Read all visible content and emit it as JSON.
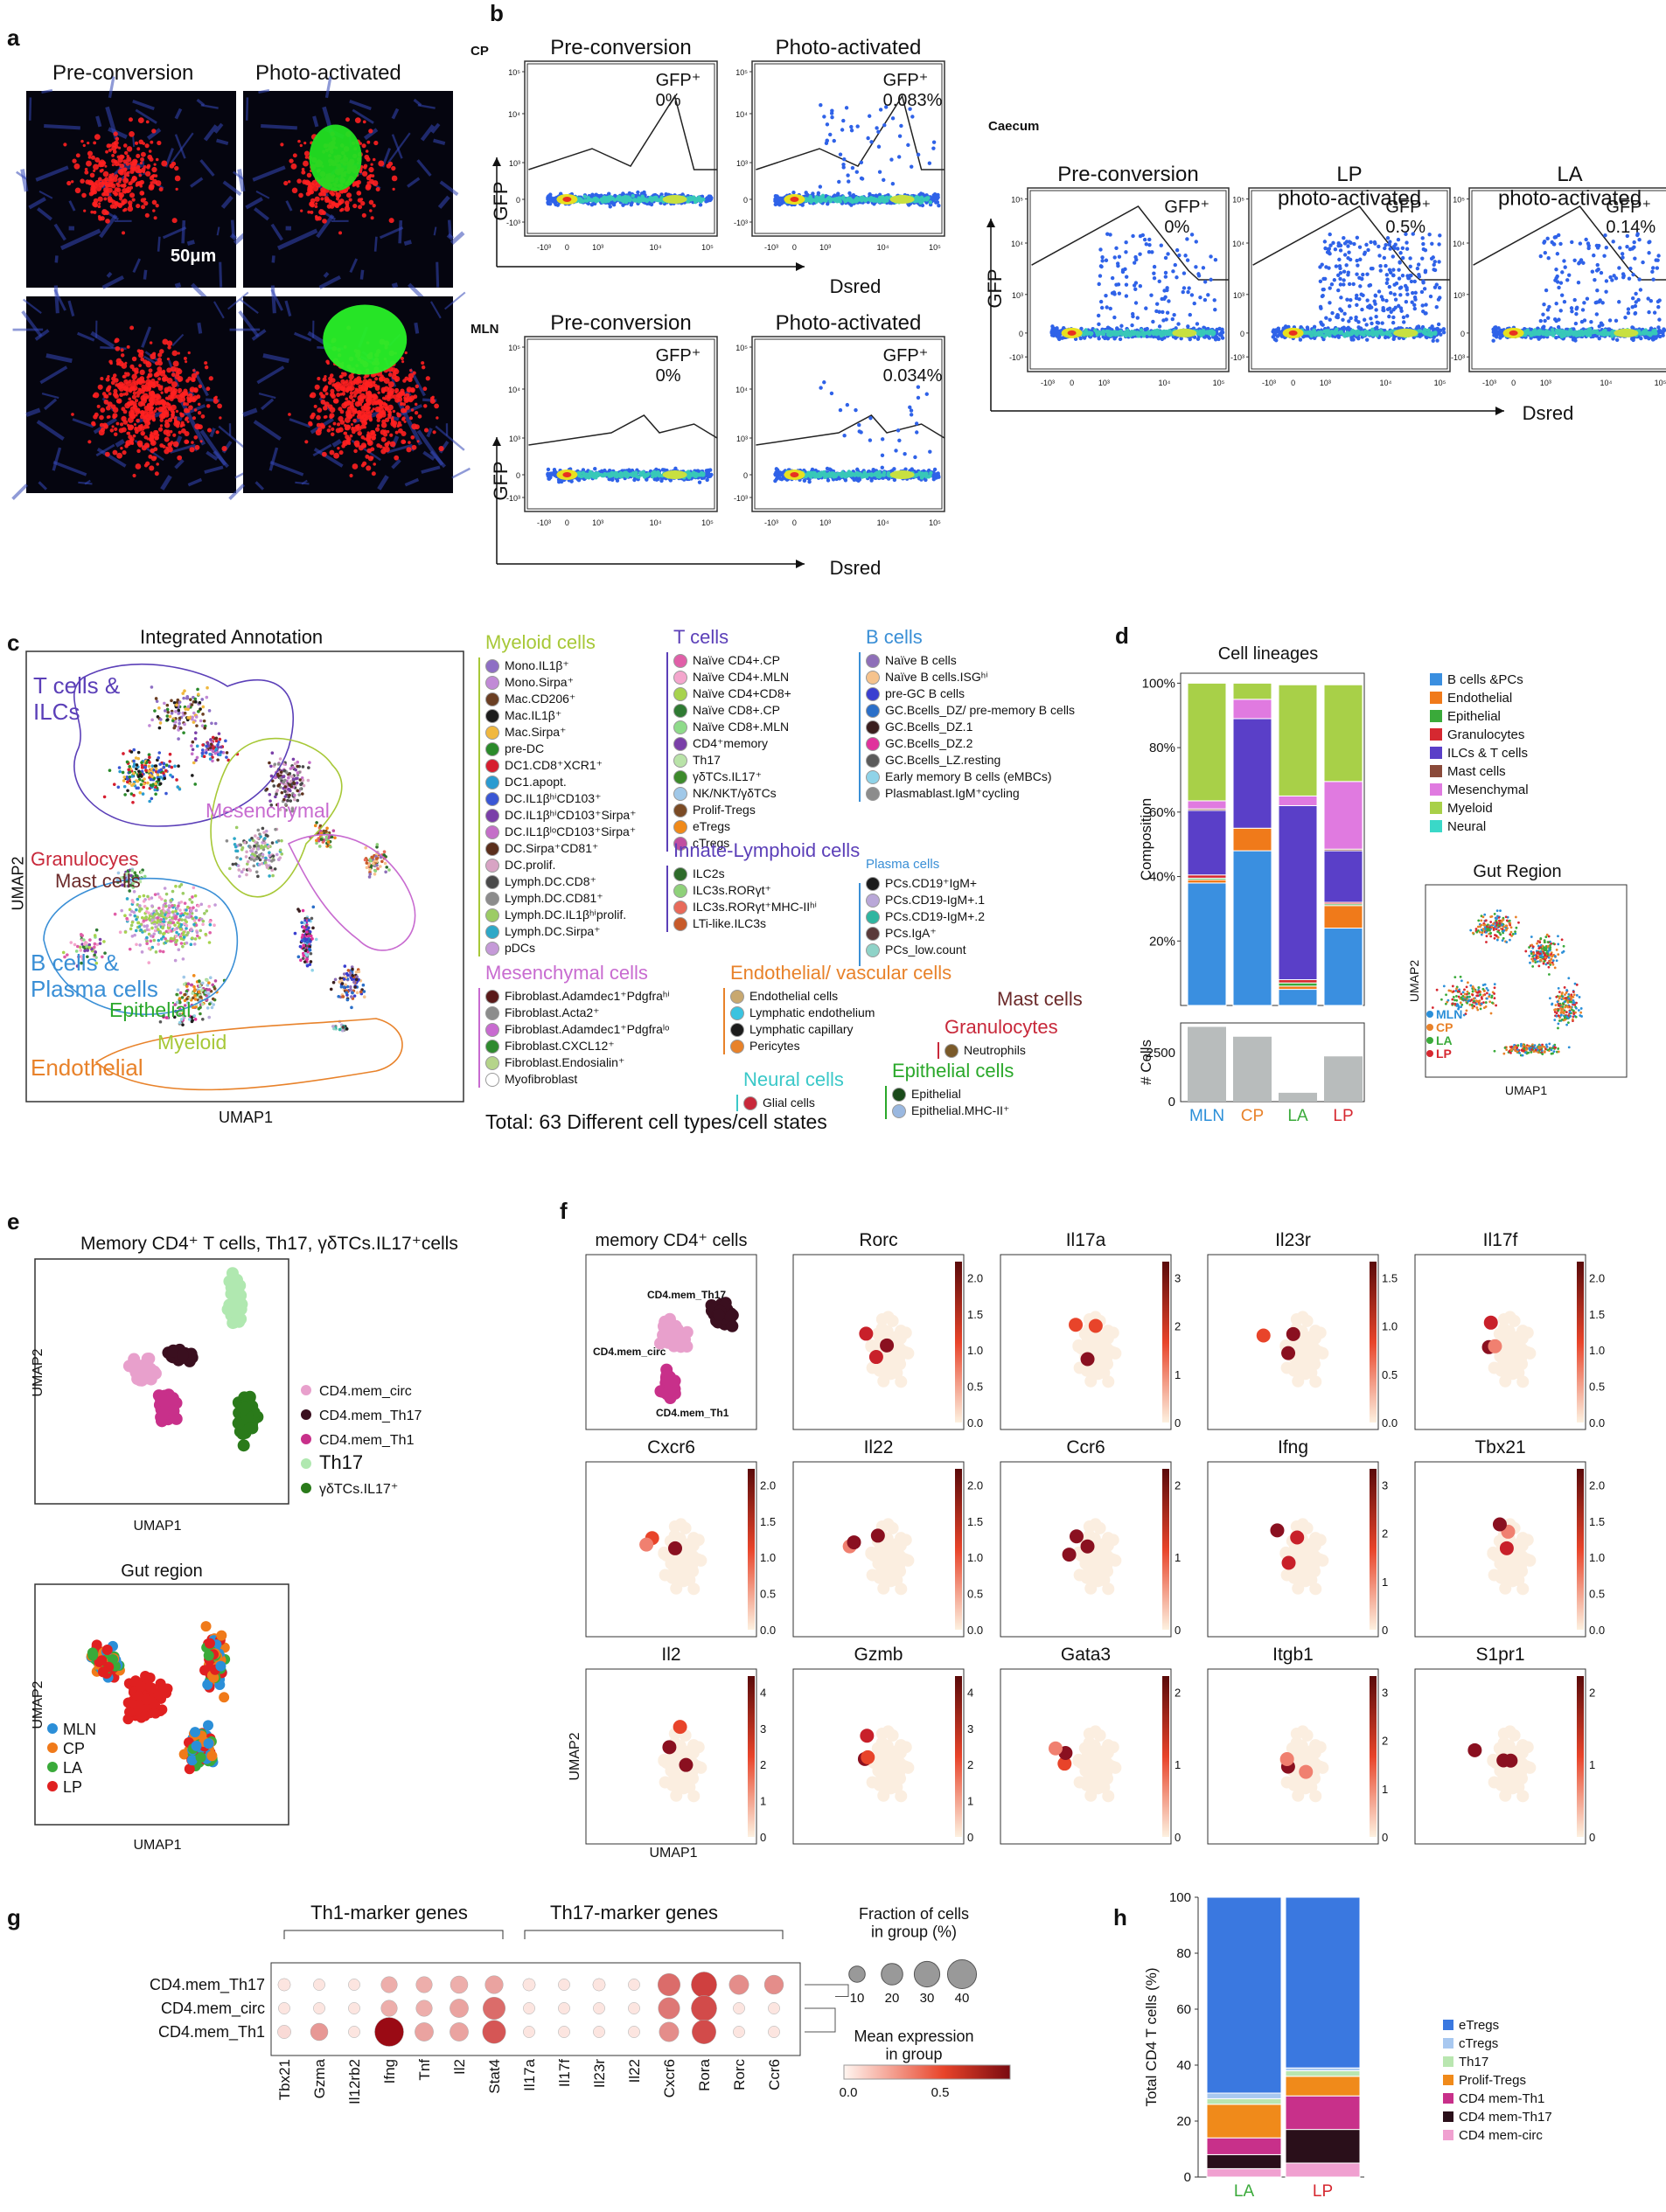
{
  "panel_a": {
    "letter": "a",
    "col_titles": [
      "Pre-conversion",
      "Photo-activated"
    ],
    "scale_label": "50μm"
  },
  "panel_b": {
    "letter": "b",
    "cp_label": "CP",
    "mln_label": "MLN",
    "caecum_label": "Caecum",
    "titles_cp": [
      "Pre-conversion",
      "Photo-activated"
    ],
    "titles_mln": [
      "Pre-conversion",
      "Photo-activated"
    ],
    "titles_caecum": [
      "Pre-conversion",
      "LP\nphoto-activated",
      "LA\nphoto-activated"
    ],
    "gfp_cp": [
      "GFP⁺\n0%",
      "GFP⁺\n0.083%"
    ],
    "gfp_mln": [
      "GFP⁺\n0%",
      "GFP⁺\n0.034%"
    ],
    "gfp_caecum": [
      "GFP⁺\n0%",
      "GFP⁺\n0.5%",
      "GFP⁺\n0.14%"
    ],
    "ylabel": "GFP",
    "xlabel": "Dsred",
    "yticks": [
      "10⁵",
      "10⁴",
      "10³",
      "0",
      "-10³"
    ],
    "xticks": [
      "-10³",
      "0",
      "10³",
      "10⁴",
      "10⁵"
    ]
  },
  "panel_c": {
    "letter": "c",
    "title": "Integrated Annotation",
    "xlabel": "UMAP1",
    "ylabel": "UMAP2",
    "region_labels": {
      "t": "T cells &\nILCs",
      "mes": "Mesenchymal",
      "gran": "Granulocyes",
      "mast": "Mast cells",
      "b": "B cells &\nPlasma cells",
      "epi": "Epithelial",
      "mye": "Myeloid",
      "endo": "Endothelial"
    },
    "total": "Total: 63 Different cell types/cell states",
    "groups": [
      {
        "name": "Myeloid cells",
        "color": "#a7c837",
        "items": [
          [
            "Mono.IL1β⁺",
            "#8e6fc4"
          ],
          [
            "Mono.Sirpa⁺",
            "#c18ad6"
          ],
          [
            "Mac.CD206⁺",
            "#6b3f23"
          ],
          [
            "Mac.IL1β⁺",
            "#1c1c1c"
          ],
          [
            "Mac.Sirpa⁺",
            "#f0b83f"
          ],
          [
            "pre-DC",
            "#2a8a2a"
          ],
          [
            "DC1.CD8⁺XCR1⁺",
            "#d61e2f"
          ],
          [
            "DC1.apopt.",
            "#2b9bd1"
          ],
          [
            "DC.IL1βʰⁱCD103⁺",
            "#3a57d4"
          ],
          [
            "DC.IL1βʰⁱCD103⁺Sirpa⁺",
            "#7a3fa8"
          ],
          [
            "DC.IL1βˡᵒCD103⁺Sirpa⁺",
            "#c46fc8"
          ],
          [
            "DC.Sirpa⁺CD81⁺",
            "#5b2f1c"
          ],
          [
            "DC.prolif.",
            "#d8a4c4"
          ],
          [
            "Lymph.DC.CD8⁺",
            "#4a4a4a"
          ],
          [
            "Lymph.DC.CD81⁺",
            "#8c8c8c"
          ],
          [
            "Lymph.DC.IL1βʰⁱprolif.",
            "#9ccc65"
          ],
          [
            "Lymph.DC.Sirpa⁺",
            "#2ea8c7"
          ],
          [
            "pDCs",
            "#c59ad8"
          ]
        ]
      },
      {
        "name": "T cells",
        "color": "#5b3fb8",
        "items": [
          [
            "Naïve CD4+.CP",
            "#e05fa8"
          ],
          [
            "Naïve CD4+.MLN",
            "#f4a6cd"
          ],
          [
            "Naïve CD4+CD8+",
            "#a7d34e"
          ],
          [
            "Naïve CD8+.CP",
            "#2f7a33"
          ],
          [
            "Naïve CD8+.MLN",
            "#8fdb8a"
          ],
          [
            "CD4⁺memory",
            "#7a3fa8"
          ],
          [
            "Th17",
            "#b9e3a8"
          ],
          [
            "γδTCs.IL17⁺",
            "#3d8a2b"
          ],
          [
            "NK/NKT/γδTCs",
            "#a0c8e8"
          ],
          [
            "Prolif-Tregs",
            "#7b4b25"
          ],
          [
            "eTregs",
            "#f08a1a"
          ],
          [
            "cTregs",
            "#c04ea0"
          ]
        ]
      },
      {
        "name": "Innate-Lymphoid cells",
        "color": "#5b3fb8",
        "items": [
          [
            "ILC2s",
            "#2e6b2a"
          ],
          [
            "ILC3s.RORγt⁺",
            "#8fd17a"
          ],
          [
            "ILC3s.RORγt⁺MHC-IIʰⁱ",
            "#e86a5a"
          ],
          [
            "LTi-like.ILC3s",
            "#c75a2a"
          ]
        ]
      },
      {
        "name": "B cells",
        "color": "#3a8fd6",
        "items": [
          [
            "Naïve B cells",
            "#8e6fb8"
          ],
          [
            "Naïve B cells.ISGʰⁱ",
            "#f6c38d"
          ],
          [
            "pre-GC B cells",
            "#3a3fd0"
          ],
          [
            "GC.Bcells_DZ/\npre-memory B cells",
            "#2b6fc8"
          ],
          [
            "GC.Bcells_DZ.1",
            "#3a1f1f"
          ],
          [
            "GC.Bcells_DZ.2",
            "#e0329c"
          ],
          [
            "GC.Bcells_LZ.resting",
            "#5a5a5a"
          ],
          [
            "Early memory B cells\n(eMBCs)",
            "#8fd3e8"
          ],
          [
            "Plasmablast.IgM⁺cycling",
            "#8c8c8c"
          ]
        ]
      },
      {
        "name": "Plasma cells",
        "color": "#3a8fd6",
        "items": [
          [
            "PCs.CD19⁺IgM+",
            "#1c1c1c"
          ],
          [
            "PCs.CD19-IgM+.1",
            "#b9a8d8"
          ],
          [
            "PCs.CD19-IgM+.2",
            "#2fb5a0"
          ],
          [
            "PCs.IgA⁺",
            "#5a3a3a"
          ],
          [
            "PCs_low.count",
            "#8fd3c8"
          ]
        ]
      },
      {
        "name": "Mesenchymal cells",
        "color": "#c86bd0",
        "items": [
          [
            "Fibroblast.Adamdec1⁺Pdgfraʰⁱ",
            "#5a1a1a"
          ],
          [
            "Fibroblast.Acta2⁺",
            "#8c8c8c"
          ],
          [
            "Fibroblast.Adamdec1⁺Pdgfraˡᵒ",
            "#c86bd0"
          ],
          [
            "Fibroblast.CXCL12⁺",
            "#2f8a2f"
          ],
          [
            "Fibroblast.Endosialin⁺",
            "#b5d48a"
          ],
          [
            "Myofibroblast",
            "#ffffff"
          ]
        ]
      },
      {
        "name": "Endothelial/ vascular cells",
        "color": "#e8822a",
        "items": [
          [
            "Endothelial cells",
            "#c8a870"
          ],
          [
            "Lymphatic endothelium",
            "#3ac3e0"
          ],
          [
            "Lymphatic capillary",
            "#1c1c1c"
          ],
          [
            "Pericytes",
            "#e8822a"
          ]
        ]
      },
      {
        "name": "Mast cells",
        "color": "#6b2a2a",
        "items": []
      },
      {
        "name": "Granulocytes",
        "color": "#c8283a",
        "items": [
          [
            "Neutrophils",
            "#7a5a2a"
          ]
        ]
      },
      {
        "name": "Neural cells",
        "color": "#3ac8c8",
        "items": [
          [
            "Glial cells",
            "#c8283a"
          ]
        ]
      },
      {
        "name": "Epithelial cells",
        "color": "#2aa82a",
        "items": [
          [
            "Epithelial",
            "#1a4a1a"
          ],
          [
            "Epithelial.MHC-II⁺",
            "#9ab8e0"
          ]
        ]
      }
    ]
  },
  "panel_d": {
    "letter": "d",
    "chart_data": {
      "type": "bar",
      "title": "Cell lineages",
      "ylabel_top": "Composition",
      "ylabel_bottom": "# Cells",
      "categories": [
        "MLN",
        "CP",
        "LA",
        "LP"
      ],
      "category_colors": [
        "#2b8fd8",
        "#e8822a",
        "#3aaa3a",
        "#d62830"
      ],
      "yticks_top": [
        "20%",
        "40%",
        "60%",
        "80%",
        "100%"
      ],
      "series": [
        {
          "name": "B cells &PCs",
          "color": "#3a8fe0",
          "values": [
            0.38,
            0.48,
            0.05,
            0.24
          ]
        },
        {
          "name": "Endothelial",
          "color": "#f07a1a",
          "values": [
            0.01,
            0.07,
            0.01,
            0.07
          ]
        },
        {
          "name": "Epithelial",
          "color": "#3aaa3a",
          "values": [
            0.005,
            0.0,
            0.01,
            0.005
          ]
        },
        {
          "name": "Granulocytes",
          "color": "#d62830",
          "values": [
            0.01,
            0.0,
            0.01,
            0.005
          ]
        },
        {
          "name": "ILCs & T cells",
          "color": "#5a3fc8",
          "values": [
            0.2,
            0.34,
            0.54,
            0.16
          ]
        },
        {
          "name": "Mast cells",
          "color": "#8a4a3a",
          "values": [
            0.005,
            0.0,
            0.0,
            0.005
          ]
        },
        {
          "name": "Mesenchymal",
          "color": "#e07ae0",
          "values": [
            0.025,
            0.06,
            0.03,
            0.21
          ]
        },
        {
          "name": "Myeloid",
          "color": "#a8d048",
          "values": [
            0.365,
            0.05,
            0.345,
            0.3
          ]
        },
        {
          "name": "Neural",
          "color": "#3ad8c8",
          "values": [
            0.0,
            0.0,
            0.0,
            0.0
          ]
        }
      ],
      "cell_counts": [
        3800,
        3300,
        450,
        2300
      ],
      "cells_tick": "2500",
      "cells_zero": "0"
    },
    "gut_title": "Gut Region",
    "gut_legend": [
      [
        "MLN",
        "#2b8fd8"
      ],
      [
        "CP",
        "#e8822a"
      ],
      [
        "LA",
        "#3aaa3a"
      ],
      [
        "LP",
        "#d62830"
      ]
    ],
    "umap1": "UMAP1",
    "umap2": "UMAP2"
  },
  "panel_e": {
    "letter": "e",
    "title": "Memory CD4⁺ T cells, Th17, γδTCs.IL17⁺cells",
    "legend": [
      [
        "CD4.mem_circ",
        "#e8a0cc"
      ],
      [
        "CD4.mem_Th17",
        "#3a0f1f"
      ],
      [
        "CD4.mem_Th1",
        "#c8308a"
      ],
      [
        "Th17",
        "#b0e8b0"
      ],
      [
        "γδTCs.IL17⁺",
        "#2a7a1a"
      ]
    ],
    "gut_title": "Gut region",
    "gut_legend": [
      [
        "MLN",
        "#2b8fd8"
      ],
      [
        "CP",
        "#f07a1a"
      ],
      [
        "LA",
        "#3aaa3a"
      ],
      [
        "LP",
        "#e02020"
      ]
    ],
    "umap1": "UMAP1",
    "umap2": "UMAP2"
  },
  "panel_f": {
    "letter": "f",
    "first_title": "memory CD4⁺ cells",
    "first_labels": [
      "CD4.mem_Th17",
      "CD4.mem_circ",
      "CD4.mem_Th1"
    ],
    "genes": [
      {
        "name": "Rorc",
        "max": 2.0,
        "ticks": [
          "0.0",
          "0.5",
          "1.0",
          "1.5",
          "2.0"
        ]
      },
      {
        "name": "Il17a",
        "max": 3,
        "ticks": [
          "0",
          "1",
          "2",
          "3"
        ]
      },
      {
        "name": "Il23r",
        "max": 1.5,
        "ticks": [
          "0.0",
          "0.5",
          "1.0",
          "1.5"
        ]
      },
      {
        "name": "Il17f",
        "max": 2,
        "ticks": [
          "0.0",
          "0.5",
          "1.0",
          "1.5",
          "2.0"
        ]
      },
      {
        "name": "Cxcr6",
        "max": 2,
        "ticks": [
          "0.0",
          "0.5",
          "1.0",
          "1.5",
          "2.0"
        ]
      },
      {
        "name": "Il22",
        "max": 2,
        "ticks": [
          "0.0",
          "0.5",
          "1.0",
          "1.5",
          "2.0"
        ]
      },
      {
        "name": "Ccr6",
        "max": 2,
        "ticks": [
          "0",
          "1",
          "2"
        ]
      },
      {
        "name": "Ifng",
        "max": 3,
        "ticks": [
          "0",
          "1",
          "2",
          "3"
        ]
      },
      {
        "name": "Tbx21",
        "max": 2,
        "ticks": [
          "0.0",
          "0.5",
          "1.0",
          "1.5",
          "2.0"
        ]
      },
      {
        "name": "Il2",
        "max": 4,
        "ticks": [
          "0",
          "1",
          "2",
          "3",
          "4"
        ]
      },
      {
        "name": "Gzmb",
        "max": 4,
        "ticks": [
          "0",
          "1",
          "2",
          "3",
          "4"
        ]
      },
      {
        "name": "Gata3",
        "max": 2,
        "ticks": [
          "0",
          "1",
          "2"
        ]
      },
      {
        "name": "Itgb1",
        "max": 3,
        "ticks": [
          "0",
          "1",
          "2",
          "3"
        ]
      },
      {
        "name": "S1pr1",
        "max": 2,
        "ticks": [
          "0",
          "1",
          "2"
        ]
      }
    ],
    "umap1": "UMAP1",
    "umap2": "UMAP2"
  },
  "panel_g": {
    "letter": "g",
    "group1": "Th1-marker genes",
    "group2": "Th17-marker genes",
    "rows": [
      "CD4.mem_Th17",
      "CD4.mem_circ",
      "CD4.mem_Th1"
    ],
    "genes": [
      "Tbx21",
      "Gzma",
      "Il12rb2",
      "Ifng",
      "Tnf",
      "Il2",
      "Stat4",
      "Il17a",
      "Il17f",
      "Il23r",
      "Il22",
      "Cxcr6",
      "Rora",
      "Rorc",
      "Ccr6"
    ],
    "fraction_title": "Fraction of cells\nin group (%)",
    "fraction_ticks": [
      "10",
      "20",
      "30",
      "40"
    ],
    "expr_title": "Mean expression\nin group",
    "expr_ticks": [
      "0.0",
      "0.5"
    ],
    "dots": [
      [
        [
          5,
          0.05
        ],
        [
          4,
          0.05
        ],
        [
          4,
          0.05
        ],
        [
          10,
          0.3
        ],
        [
          10,
          0.3
        ],
        [
          12,
          0.3
        ],
        [
          13,
          0.35
        ],
        [
          5,
          0.05
        ],
        [
          4,
          0.05
        ],
        [
          5,
          0.05
        ],
        [
          4,
          0.05
        ],
        [
          22,
          0.6
        ],
        [
          30,
          0.8
        ],
        [
          16,
          0.45
        ],
        [
          15,
          0.45
        ]
      ],
      [
        [
          4,
          0.05
        ],
        [
          4,
          0.05
        ],
        [
          4,
          0.05
        ],
        [
          10,
          0.3
        ],
        [
          10,
          0.3
        ],
        [
          14,
          0.35
        ],
        [
          22,
          0.6
        ],
        [
          4,
          0.05
        ],
        [
          4,
          0.05
        ],
        [
          4,
          0.05
        ],
        [
          4,
          0.05
        ],
        [
          20,
          0.55
        ],
        [
          30,
          0.75
        ],
        [
          4,
          0.05
        ],
        [
          4,
          0.05
        ]
      ],
      [
        [
          6,
          0.1
        ],
        [
          12,
          0.4
        ],
        [
          4,
          0.05
        ],
        [
          40,
          1.0
        ],
        [
          14,
          0.35
        ],
        [
          14,
          0.35
        ],
        [
          24,
          0.7
        ],
        [
          4,
          0.05
        ],
        [
          4,
          0.05
        ],
        [
          4,
          0.05
        ],
        [
          4,
          0.05
        ],
        [
          16,
          0.45
        ],
        [
          26,
          0.75
        ],
        [
          4,
          0.05
        ],
        [
          4,
          0.05
        ]
      ]
    ]
  },
  "panel_h": {
    "letter": "h",
    "chart_data": {
      "type": "bar",
      "ylabel": "Total CD4 T cells (%)",
      "categories": [
        "LA",
        "LP"
      ],
      "category_colors": [
        "#3aaa3a",
        "#d62830"
      ],
      "yticks": [
        "0",
        "20",
        "40",
        "60",
        "80",
        "100"
      ],
      "series": [
        {
          "name": "CD4 mem-circ",
          "color": "#f0a0d0",
          "values": [
            3,
            5
          ]
        },
        {
          "name": "CD4 mem-Th17",
          "color": "#2a0f1a",
          "values": [
            5,
            12
          ]
        },
        {
          "name": "CD4 mem-Th1",
          "color": "#c8308a",
          "values": [
            6,
            12
          ]
        },
        {
          "name": "Prolif-Tregs",
          "color": "#f08a1a",
          "values": [
            12,
            7
          ]
        },
        {
          "name": "Th17",
          "color": "#b9e6b0",
          "values": [
            2,
            2
          ]
        },
        {
          "name": "cTregs",
          "color": "#a8c8f0",
          "values": [
            2,
            1
          ]
        },
        {
          "name": "eTregs",
          "color": "#3a78e0",
          "values": [
            70,
            61
          ]
        }
      ]
    }
  }
}
